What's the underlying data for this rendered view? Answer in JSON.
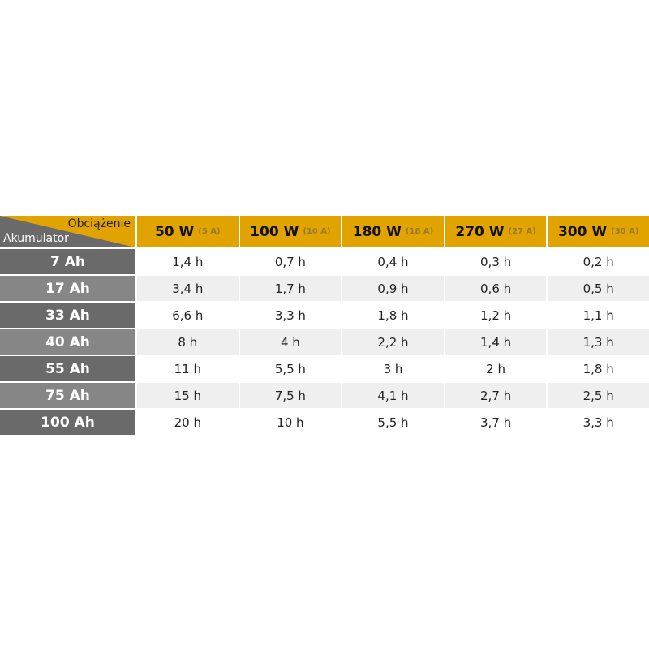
{
  "table": {
    "corner_top": "Obciążenie",
    "corner_bottom": "Akumulator",
    "columns": [
      {
        "watts": "50 W",
        "amps": "(5 A)"
      },
      {
        "watts": "100 W",
        "amps": "(10 A)"
      },
      {
        "watts": "180 W",
        "amps": "(18 A)"
      },
      {
        "watts": "270 W",
        "amps": "(27 A)"
      },
      {
        "watts": "300 W",
        "amps": "(30 A)"
      }
    ],
    "rows": [
      {
        "label": "7 Ah",
        "values": [
          "1,4 h",
          "0,7 h",
          "0,4 h",
          "0,3 h",
          "0,2 h"
        ]
      },
      {
        "label": "17 Ah",
        "values": [
          "3,4 h",
          "1,7 h",
          "0,9 h",
          "0,6 h",
          "0,5 h"
        ]
      },
      {
        "label": "33 Ah",
        "values": [
          "6,6 h",
          "3,3 h",
          "1,8 h",
          "1,2 h",
          "1,1 h"
        ]
      },
      {
        "label": "40 Ah",
        "values": [
          "8 h",
          "4 h",
          "2,2 h",
          "1,4 h",
          "1,3 h"
        ]
      },
      {
        "label": "55 Ah",
        "values": [
          "11 h",
          "5,5 h",
          "3 h",
          "2 h",
          "1,8 h"
        ]
      },
      {
        "label": "75 Ah",
        "values": [
          "15 h",
          "7,5 h",
          "4,1 h",
          "2,7 h",
          "2,5 h"
        ]
      },
      {
        "label": "100 Ah",
        "values": [
          "20 h",
          "10 h",
          "5,5 h",
          "3,7 h",
          "3,3 h"
        ]
      }
    ],
    "colors": {
      "header": "#e0a300",
      "row_dark": "#6a6a6a",
      "row_light": "#868686",
      "cell_alt": "#efefef"
    }
  }
}
